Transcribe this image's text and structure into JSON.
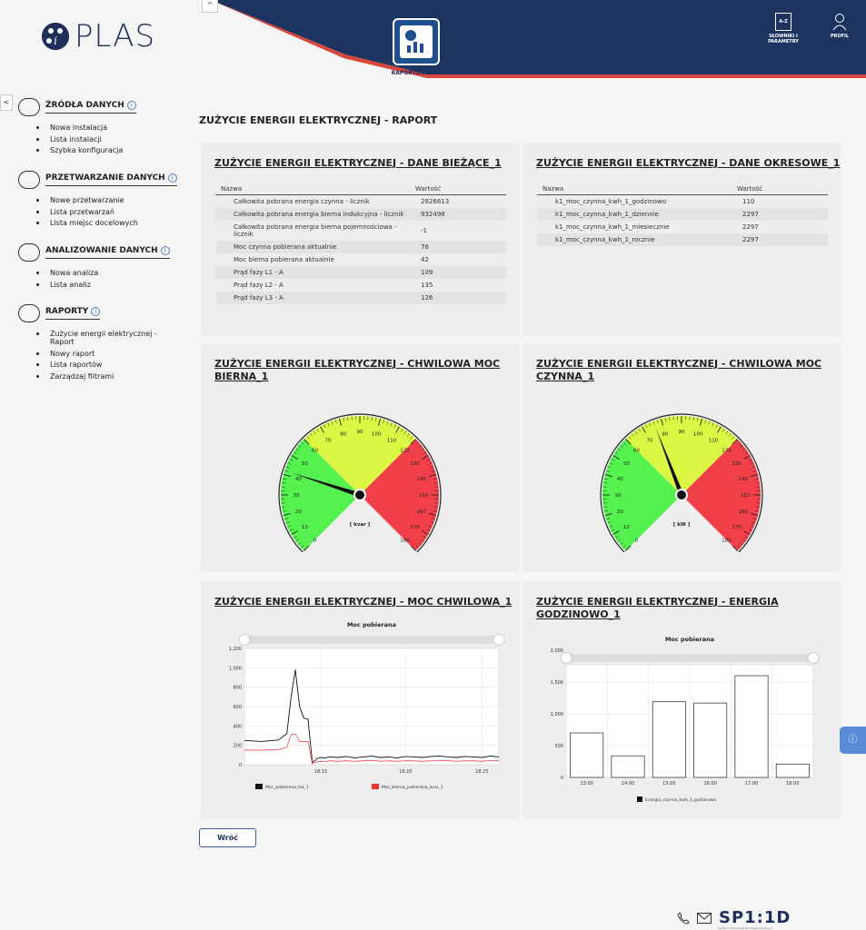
{
  "header": {
    "logo_text": "PLAS",
    "report_tile_label": "RAPORTOWANIE",
    "dictionaries_label_1": "SŁOWNIKI I",
    "dictionaries_label_2": "PARAMETRY",
    "dictionaries_icon_text": "A-Z",
    "profile_label": "PROFIL",
    "colors": {
      "navy": "#1d2f5a",
      "accent_red": "#d9473b"
    }
  },
  "sidebar": {
    "sections": [
      {
        "title": "ŹRÓDŁA DANYCH",
        "icon": "sources-icon",
        "items": [
          "Nowa instalacja",
          "Lista instalacji",
          "Szybka konfiguracja"
        ]
      },
      {
        "title": "PRZETWARZANIE DANYCH",
        "icon": "processing-icon",
        "items": [
          "Nowe przetwarzanie",
          "Lista przetwarzań",
          "Lista miejsc docelowych"
        ]
      },
      {
        "title": "ANALIZOWANIE DANYCH",
        "icon": "analysis-gear-icon",
        "items": [
          "Nowa analiza",
          "Lista analiz"
        ]
      },
      {
        "title": "RAPORTY",
        "icon": "reports-chart-icon",
        "items": [
          "Zużycie energii elektrycznej - Raport",
          "Nowy raport",
          "Lista raportów",
          "Zarządzaj filtrami"
        ]
      }
    ]
  },
  "main": {
    "page_title": "ZUŻYCIE ENERGII ELEKTRYCZNEJ - RAPORT",
    "current_data": {
      "title": "ZUŻYCIE ENERGII ELEKTRYCZNEJ - DANE BIEŻĄCE_1",
      "col_name": "Nazwa",
      "col_value": "Wartość",
      "rows": [
        {
          "name": "Całkowita pobrana energia czynna - licznik",
          "value": "2826613"
        },
        {
          "name": "Całkowita pobrana energia bierna indukcyjna - licznik",
          "value": "932498"
        },
        {
          "name": "Całkowita pobrana energia bierna pojemnościowa - licznik",
          "value": "-1"
        },
        {
          "name": "Moc czynna pobierana aktualnie",
          "value": "76"
        },
        {
          "name": "Moc bierna pobierana aktualnie",
          "value": "42"
        },
        {
          "name": "Prąd fazy L1 - A",
          "value": "109"
        },
        {
          "name": "Prąd fazy L2 - A",
          "value": "135"
        },
        {
          "name": "Prąd fazy L3 - A",
          "value": "126"
        }
      ]
    },
    "period_data": {
      "title": "ZUŻYCIE ENERGII ELEKTRYCZNEJ - DANE OKRESOWE_1",
      "col_name": "Nazwa",
      "col_value": "Wartość",
      "rows": [
        {
          "name": "k1_moc_czynna_kwh_1_godzinowo",
          "value": "110"
        },
        {
          "name": "k1_moc_czynna_kwh_1_dziennie",
          "value": "2297"
        },
        {
          "name": "k1_moc_czynna_kwh_1_miesiecznie",
          "value": "2297"
        },
        {
          "name": "k1_moc_czynna_kwh_1_rocznie",
          "value": "2297"
        }
      ]
    },
    "gauge_reactive": {
      "title": "ZUŻYCIE ENERGII ELEKTRYCZNEJ - CHWILOWA MOC BIERNA_1",
      "unit": "[ kvar ]",
      "value": 42
    },
    "gauge_active": {
      "title": "ZUŻYCIE ENERGII ELEKTRYCZNEJ - CHWILOWA MOC CZYNNA_1",
      "unit": "[ kW ]",
      "value": 76
    },
    "gauge_scale": {
      "min": 0,
      "max": 180,
      "tick_labels": [
        "0",
        "10",
        "20",
        "30",
        "40",
        "50",
        "60",
        "70",
        "80",
        "90",
        "100",
        "110",
        "120",
        "130",
        "140",
        "150",
        "160",
        "170",
        "180"
      ],
      "zones": [
        {
          "from": 0,
          "to": 60,
          "color": "#55f24f"
        },
        {
          "from": 60,
          "to": 120,
          "color": "#dcf743"
        },
        {
          "from": 120,
          "to": 180,
          "color": "#f2404a"
        }
      ]
    },
    "power_chart": {
      "title": "ZUŻYCIE ENERGII ELEKTRYCZNEJ - MOC CHWILOWA_1",
      "button_back": "Wróć"
    },
    "energy_chart": {
      "title": "ZUŻYCIE ENERGII ELEKTRYCZNEJ - ENERGIA GODZINOWO_1"
    },
    "back_button": "Wróć"
  },
  "chart_data": [
    {
      "type": "line",
      "title": "Moc pobierana",
      "xlabel": "",
      "ylabel": "",
      "ylim": [
        0,
        1200
      ],
      "x_ticks": [
        "18:15",
        "18:20",
        "18:25"
      ],
      "y_ticks": [
        "0",
        "200",
        "400",
        "600",
        "800",
        "1,000",
        "1,200"
      ],
      "x_minutes": [
        0,
        2,
        4,
        5,
        5.5,
        6,
        6.5,
        7,
        7.5,
        8,
        8.5,
        9,
        9.5,
        10,
        11,
        12,
        13,
        14,
        15,
        16,
        17,
        18,
        19,
        20,
        21,
        22,
        23,
        24,
        25,
        26,
        27,
        28,
        29,
        30
      ],
      "series": [
        {
          "name": "Moc_pobierana_kw_1",
          "color": "#111111",
          "values": [
            250,
            240,
            255,
            320,
            700,
            980,
            600,
            480,
            470,
            20,
            60,
            75,
            70,
            80,
            75,
            85,
            70,
            80,
            90,
            75,
            80,
            70,
            85,
            80,
            75,
            85,
            90,
            80,
            75,
            85,
            80,
            75,
            90,
            80
          ]
        },
        {
          "name": "Moc_bierna_pobierana_kvar_1",
          "color": "#ee3333",
          "values": [
            150,
            150,
            155,
            180,
            310,
            320,
            240,
            240,
            240,
            10,
            30,
            35,
            30,
            40,
            35,
            40,
            35,
            40,
            45,
            35,
            40,
            35,
            40,
            40,
            35,
            40,
            45,
            40,
            35,
            40,
            40,
            35,
            45,
            40
          ]
        }
      ],
      "legend": "bottom"
    },
    {
      "type": "bar",
      "title": "Moc pobierana",
      "categories": [
        "13:00",
        "14:00",
        "15:00",
        "16:00",
        "17:00",
        "18:00"
      ],
      "y_ticks": [
        "0",
        "500",
        "1,000",
        "1,500",
        "2,000"
      ],
      "ylim": [
        0,
        2000
      ],
      "series": [
        {
          "name": "Energia_czynna_kwh_1_godzinowo",
          "values": [
            700,
            340,
            1190,
            1170,
            1600,
            210
          ]
        }
      ],
      "legend": "bottom"
    }
  ],
  "footer": {
    "brand": "SP1:1D",
    "sub": "System Przetwarzania Integracji Danych"
  }
}
